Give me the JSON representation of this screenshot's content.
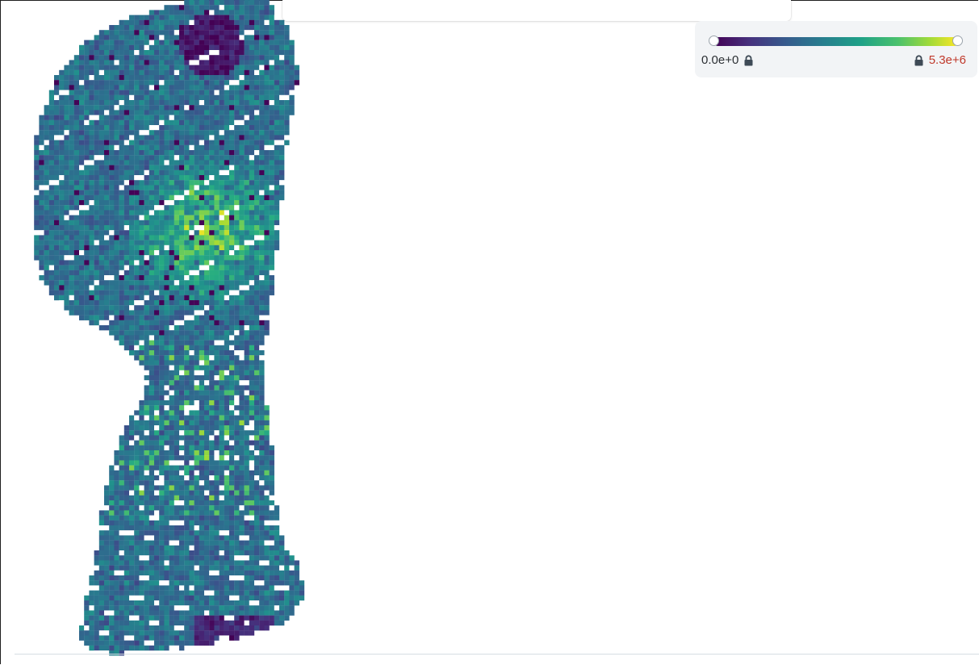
{
  "colorbar": {
    "min_label": "0.0e+0",
    "max_label": "5.3e+6",
    "min_value": 0,
    "max_value": 5300000,
    "colormap": "viridis",
    "min_locked": true,
    "max_locked": true,
    "max_label_color": "#c0392b",
    "lock_icon": "lock-icon"
  },
  "heatmap": {
    "colormap": "viridis",
    "missing_value_color": "#ffffff"
  }
}
